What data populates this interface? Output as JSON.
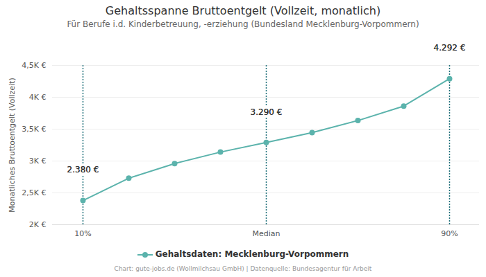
{
  "chart_data": {
    "type": "line",
    "title": "Gehaltsspanne Bruttoentgelt (Vollzeit, monatlich)",
    "subtitle": "Für Berufe i.d. Kinderbetreuung, -erziehung (Bundesland Mecklenburg-Vorpommern)",
    "caption": "Chart: gute-jobs.de (Wollmilchsau GmbH) | Datenquelle: Bundesagentur für Arbeit",
    "y_label": "Monatliches Bruttoentgelt (Vollzeit)",
    "categories": [
      "10%",
      null,
      null,
      null,
      "Median",
      null,
      null,
      null,
      "90%"
    ],
    "series": [
      {
        "name": "Gehaltsdaten: Mecklenburg-Vorpommern",
        "color": "#5bb3ac",
        "marker": "circle",
        "line_style": "solid",
        "values": [
          2380,
          2730,
          2960,
          3140,
          3290,
          3445,
          3635,
          3862,
          4292
        ],
        "value_labels": [
          "2.380 €",
          null,
          null,
          null,
          "3.290 €",
          null,
          null,
          null,
          "4.292 €"
        ]
      }
    ],
    "ylim": [
      2000,
      4500
    ],
    "yticks": [
      {
        "value": 2000,
        "label": "2K €"
      },
      {
        "value": 2500,
        "label": "2,5K €"
      },
      {
        "value": 3000,
        "label": "3K €"
      },
      {
        "value": 3500,
        "label": "3,5K €"
      },
      {
        "value": 4000,
        "label": "4K €"
      },
      {
        "value": 4500,
        "label": "4,5K €"
      }
    ],
    "grid": true,
    "data_labels": true,
    "legend": "bottom"
  }
}
